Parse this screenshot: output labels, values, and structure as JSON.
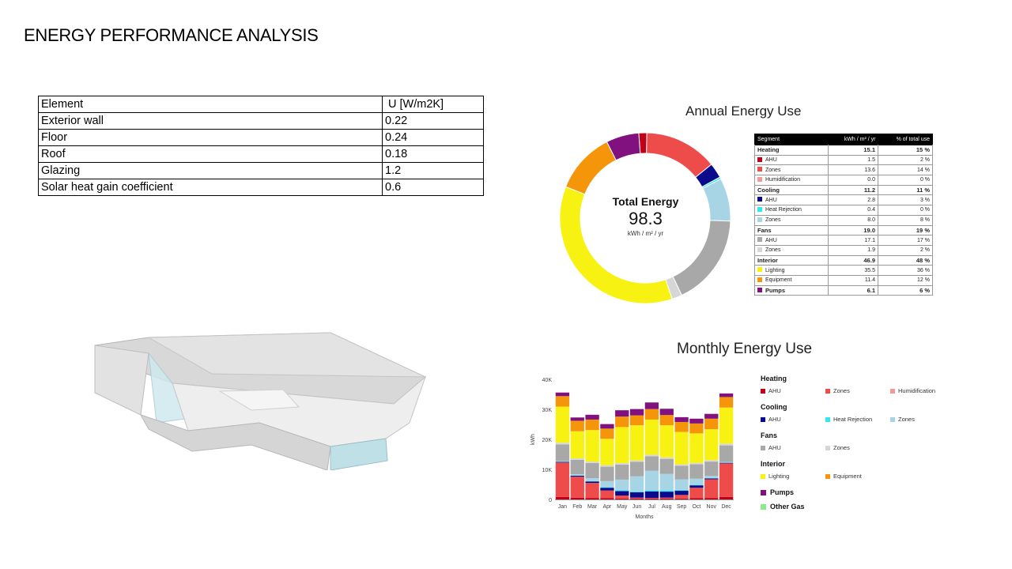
{
  "slide": {
    "title": "ENERGY PERFORMANCE ANALYSIS"
  },
  "u_table": {
    "headers": [
      "Element",
      "U [W/m2K]"
    ],
    "rows": [
      [
        "Exterior wall",
        "0.22"
      ],
      [
        "Floor",
        "0.24"
      ],
      [
        "Roof",
        "0.18"
      ],
      [
        "Glazing",
        "1.2"
      ],
      [
        "Solar heat gain coefficient",
        "0.6"
      ]
    ]
  },
  "annual": {
    "title": "Annual Energy Use",
    "total_label": "Total Energy",
    "total_value": "98.3",
    "total_unit": "kWh / m² / yr"
  },
  "segment_table": {
    "headers": [
      "Segment",
      "kWh / m² / yr",
      "% of total use"
    ],
    "rows": [
      {
        "name": "Heating",
        "value": "15.1",
        "pct": "15 %",
        "group": true
      },
      {
        "name": "AHU",
        "value": "1.5",
        "pct": "2 %",
        "color": "#c00018"
      },
      {
        "name": "Zones",
        "value": "13.6",
        "pct": "14 %",
        "color": "#ee4b4b"
      },
      {
        "name": "Humidification",
        "value": "0.0",
        "pct": "0 %",
        "color": "#f29a9a"
      },
      {
        "name": "Cooling",
        "value": "11.2",
        "pct": "11 %",
        "group": true
      },
      {
        "name": "AHU",
        "value": "2.8",
        "pct": "3 %",
        "color": "#0a0a8c"
      },
      {
        "name": "Heat Rejection",
        "value": "0.4",
        "pct": "0 %",
        "color": "#35e6f0"
      },
      {
        "name": "Zones",
        "value": "8.0",
        "pct": "8 %",
        "color": "#a7d5e6"
      },
      {
        "name": "Fans",
        "value": "19.0",
        "pct": "19 %",
        "group": true
      },
      {
        "name": "AHU",
        "value": "17.1",
        "pct": "17 %",
        "color": "#a8a8a8"
      },
      {
        "name": "Zones",
        "value": "1.9",
        "pct": "2 %",
        "color": "#d6d6d6"
      },
      {
        "name": "Interior",
        "value": "46.9",
        "pct": "48 %",
        "group": true
      },
      {
        "name": "Lighting",
        "value": "35.5",
        "pct": "36 %",
        "color": "#f7f211"
      },
      {
        "name": "Equipment",
        "value": "11.4",
        "pct": "12 %",
        "color": "#f5960a"
      },
      {
        "name": "Pumps",
        "value": "6.1",
        "pct": "6 %",
        "group": true,
        "color": "#80117f"
      }
    ]
  },
  "monthly": {
    "title": "Monthly Energy Use"
  },
  "legend": {
    "groups": [
      {
        "name": "Heating",
        "items": [
          {
            "label": "AHU",
            "color": "#c00018"
          },
          {
            "label": "Zones",
            "color": "#ee4b4b"
          },
          {
            "label": "Humidification",
            "color": "#f29a9a"
          }
        ]
      },
      {
        "name": "Cooling",
        "items": [
          {
            "label": "AHU",
            "color": "#0a0a8c"
          },
          {
            "label": "Heat Rejection",
            "color": "#35e6f0"
          },
          {
            "label": "Zones",
            "color": "#a7d5e6"
          }
        ]
      },
      {
        "name": "Fans",
        "items": [
          {
            "label": "AHU",
            "color": "#a8a8a8"
          },
          {
            "label": "Zones",
            "color": "#d6d6d6"
          }
        ]
      },
      {
        "name": "Interior",
        "items": [
          {
            "label": "Lighting",
            "color": "#f7f211"
          },
          {
            "label": "Equipment",
            "color": "#f5960a"
          }
        ]
      }
    ],
    "singles": [
      {
        "label": "Pumps",
        "color": "#80117f"
      },
      {
        "label": "Other Gas",
        "color": "#8fe88a"
      }
    ]
  },
  "chart_data": [
    {
      "type": "pie",
      "title": "Annual Energy Use",
      "donut": true,
      "categories": [
        "Heating AHU",
        "Heating Zones",
        "Cooling AHU",
        "Cooling Heat Rejection",
        "Cooling Zones",
        "Fans AHU",
        "Fans Zones",
        "Lighting",
        "Equipment",
        "Pumps"
      ],
      "values": [
        1.5,
        13.6,
        2.8,
        0.4,
        8.0,
        17.1,
        1.9,
        35.5,
        11.4,
        6.1
      ],
      "colors": [
        "#c00018",
        "#ee4b4b",
        "#0a0a8c",
        "#35e6f0",
        "#a7d5e6",
        "#a8a8a8",
        "#d6d6d6",
        "#f7f211",
        "#f5960a",
        "#80117f"
      ]
    },
    {
      "type": "bar",
      "stacked": true,
      "title": "Monthly Energy Use",
      "xlabel": "Months",
      "ylabel": "kWh",
      "ylim": [
        0,
        40000
      ],
      "yticks": [
        0,
        10000,
        20000,
        30000,
        40000
      ],
      "ytick_labels": [
        "0",
        "10K",
        "20K",
        "30K",
        "40K"
      ],
      "categories": [
        "Jan",
        "Feb",
        "Mar",
        "Apr",
        "May",
        "Jun",
        "Jul",
        "Aug",
        "Sep",
        "Oct",
        "Nov",
        "Dec"
      ],
      "series": [
        {
          "name": "Heating AHU",
          "color": "#c00018",
          "values": [
            800,
            600,
            500,
            400,
            300,
            300,
            300,
            300,
            300,
            400,
            500,
            800
          ]
        },
        {
          "name": "Heating Zones",
          "color": "#ee4b4b",
          "values": [
            11500,
            7000,
            5000,
            2600,
            1000,
            300,
            200,
            300,
            1200,
            3500,
            6200,
            11200
          ]
        },
        {
          "name": "Cooling AHU",
          "color": "#0a0a8c",
          "values": [
            200,
            300,
            500,
            900,
            1500,
            1800,
            2200,
            2000,
            1400,
            800,
            300,
            200
          ]
        },
        {
          "name": "Cooling Heat Rejection",
          "color": "#35e6f0",
          "values": [
            100,
            100,
            100,
            200,
            300,
            300,
            400,
            400,
            300,
            200,
            100,
            100
          ]
        },
        {
          "name": "Cooling Zones",
          "color": "#a7d5e6",
          "values": [
            200,
            400,
            1000,
            2000,
            3500,
            5000,
            6500,
            5500,
            3500,
            2000,
            700,
            200
          ]
        },
        {
          "name": "Fans AHU",
          "color": "#a8a8a8",
          "values": [
            5500,
            4800,
            5000,
            4800,
            5000,
            4800,
            4800,
            5000,
            4500,
            4800,
            4800,
            5500
          ]
        },
        {
          "name": "Fans Zones",
          "color": "#d6d6d6",
          "values": [
            600,
            500,
            500,
            500,
            500,
            500,
            500,
            500,
            500,
            500,
            500,
            600
          ]
        },
        {
          "name": "Lighting",
          "color": "#f7f211",
          "values": [
            12000,
            9000,
            10500,
            8800,
            12000,
            11700,
            11700,
            10700,
            10800,
            9800,
            10300,
            12000
          ]
        },
        {
          "name": "Equipment",
          "color": "#f5960a",
          "values": [
            3500,
            3500,
            3500,
            3400,
            3500,
            3300,
            3500,
            3400,
            3300,
            3300,
            3500,
            3500
          ]
        },
        {
          "name": "Pumps",
          "color": "#80117f",
          "values": [
            1200,
            1100,
            1600,
            1500,
            2100,
            2100,
            2200,
            2100,
            1600,
            1600,
            1600,
            1200
          ]
        },
        {
          "name": "Other Gas",
          "color": "#8fe88a",
          "values": [
            0,
            0,
            0,
            0,
            0,
            0,
            0,
            0,
            0,
            0,
            0,
            0
          ]
        }
      ]
    }
  ]
}
